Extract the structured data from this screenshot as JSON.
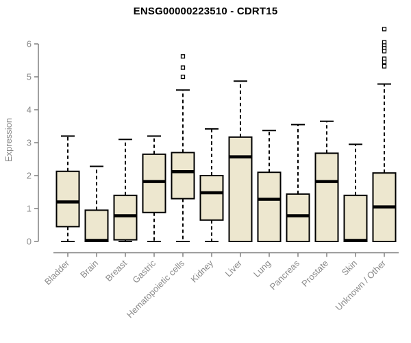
{
  "chart_data": {
    "type": "boxplot",
    "title": "ENSG00000223510 - CDRT15",
    "ylabel": "Expression",
    "xlabel": "",
    "ylim": [
      0,
      6
    ],
    "yticks": [
      0,
      1,
      2,
      3,
      4,
      5,
      6
    ],
    "grid": "off",
    "legend": "none",
    "categories": [
      "Bladder",
      "Brain",
      "Breast",
      "Gastric",
      "Hematopoietic cells",
      "Kidney",
      "Liver",
      "Lung",
      "Pancreas",
      "Prostate",
      "Skin",
      "Unknown / Other"
    ],
    "series": [
      {
        "label": "Bladder",
        "whislo": 0,
        "q1": 0.45,
        "med": 1.2,
        "q3": 2.13,
        "whishi": 3.2,
        "outliers": []
      },
      {
        "label": "Brain",
        "whislo": 0,
        "q1": 0.0,
        "med": 0.03,
        "q3": 0.95,
        "whishi": 2.28,
        "outliers": []
      },
      {
        "label": "Breast",
        "whislo": 0,
        "q1": 0.05,
        "med": 0.78,
        "q3": 1.4,
        "whishi": 3.1,
        "outliers": []
      },
      {
        "label": "Gastric",
        "whislo": 0,
        "q1": 0.88,
        "med": 1.82,
        "q3": 2.65,
        "whishi": 3.2,
        "outliers": []
      },
      {
        "label": "Hematopoietic cells",
        "whislo": 0,
        "q1": 1.3,
        "med": 2.12,
        "q3": 2.7,
        "whishi": 4.6,
        "outliers": [
          5.0,
          5.28,
          5.62
        ]
      },
      {
        "label": "Kidney",
        "whislo": 0,
        "q1": 0.65,
        "med": 1.48,
        "q3": 2.0,
        "whishi": 3.42,
        "outliers": []
      },
      {
        "label": "Liver",
        "whislo": 0,
        "q1": 0.0,
        "med": 2.57,
        "q3": 3.17,
        "whishi": 4.87,
        "outliers": []
      },
      {
        "label": "Lung",
        "whislo": 0,
        "q1": 0.0,
        "med": 1.28,
        "q3": 2.1,
        "whishi": 3.37,
        "outliers": []
      },
      {
        "label": "Pancreas",
        "whislo": 0,
        "q1": 0.0,
        "med": 0.78,
        "q3": 1.44,
        "whishi": 3.55,
        "outliers": []
      },
      {
        "label": "Prostate",
        "whislo": 0,
        "q1": 0.0,
        "med": 1.82,
        "q3": 2.68,
        "whishi": 3.65,
        "outliers": []
      },
      {
        "label": "Skin",
        "whislo": 0,
        "q1": 0.0,
        "med": 0.03,
        "q3": 1.4,
        "whishi": 2.95,
        "outliers": []
      },
      {
        "label": "Unknown / Other",
        "whislo": 0,
        "q1": 0.0,
        "med": 1.05,
        "q3": 2.08,
        "whishi": 4.78,
        "outliers": [
          6.45,
          6.05,
          5.95,
          5.87,
          5.78,
          5.55,
          5.45,
          5.32
        ]
      }
    ],
    "colors": {
      "box_fill": "#EDE7CF",
      "line": "#000000",
      "axis": "#787878",
      "tick_label": "#8A8A8A",
      "title": "#000000"
    }
  }
}
